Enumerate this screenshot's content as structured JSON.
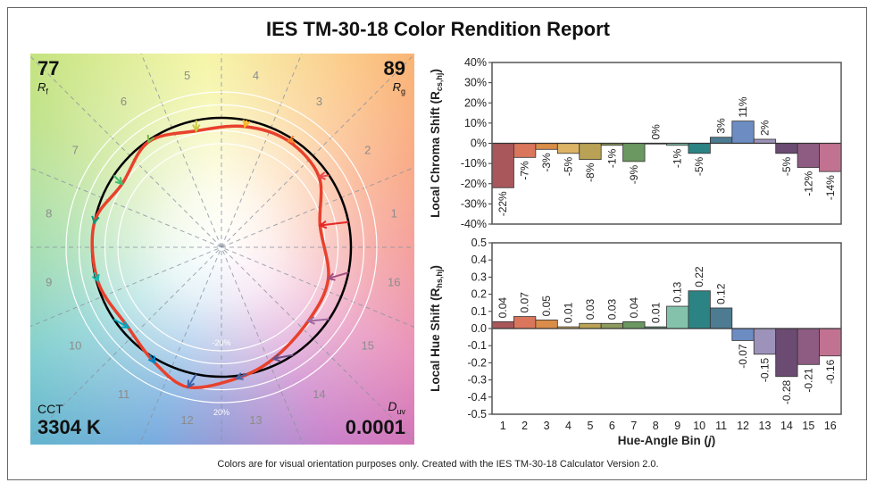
{
  "title": "IES TM-30-18 Color Rendition Report",
  "footnote": "Colors are for visual orientation purposes only. Created with the IES TM-30-18 Calculator Version 2.0.",
  "vector_graphic": {
    "rf_value": "77",
    "rf_label": "R",
    "rf_sub": "f",
    "rg_value": "89",
    "rg_label": "R",
    "rg_sub": "g",
    "cct_label": "CCT",
    "cct_value": "3304 K",
    "duv_label": "D",
    "duv_sub": "uv",
    "duv_value": "0.0001",
    "ring_labels": [
      "-20%",
      "20%"
    ],
    "bin_labels": [
      "1",
      "2",
      "3",
      "4",
      "5",
      "6",
      "7",
      "8",
      "9",
      "10",
      "11",
      "12",
      "13",
      "14",
      "15",
      "16"
    ],
    "reference_color": "#000000",
    "test_color": "#e8412c",
    "arrow_colors": [
      "#e62828",
      "#e74b4b",
      "#fb812e",
      "#ffb529",
      "#cbca46",
      "#7eb94c",
      "#41c06d",
      "#009c7c",
      "#16bcb0",
      "#00a4bf",
      "#0085c3",
      "#3b62aa",
      "#4568ae",
      "#6a4e85",
      "#9d69a1",
      "#a74f81"
    ]
  },
  "chart_data": [
    {
      "type": "bar",
      "ylabel": "Local Chroma Shift (R",
      "ylabel_sub": "cs,hj",
      "ylabel_end": ")",
      "categories": [
        "1",
        "2",
        "3",
        "4",
        "5",
        "6",
        "7",
        "8",
        "9",
        "10",
        "11",
        "12",
        "13",
        "14",
        "15",
        "16"
      ],
      "values": [
        -22,
        -7,
        -3,
        -5,
        -8,
        -1,
        -9,
        0,
        -1,
        -5,
        3,
        11,
        2,
        -5,
        -12,
        -14
      ],
      "data_labels": [
        "-22%",
        "-7%",
        "-3%",
        "-5%",
        "-8%",
        "-1%",
        "-9%",
        "0%",
        "-1%",
        "-5%",
        "3%",
        "11%",
        "2%",
        "-5%",
        "-12%",
        "-14%"
      ],
      "ylim": [
        -40,
        40
      ],
      "yticks": [
        "40%",
        "30%",
        "20%",
        "10%",
        "0%",
        "-10%",
        "-20%",
        "-30%",
        "-40%"
      ],
      "ytick_values": [
        40,
        30,
        20,
        10,
        0,
        -10,
        -20,
        -30,
        -40
      ],
      "grid": false,
      "colors": [
        "#a9575a",
        "#d9765c",
        "#d98d48",
        "#ddb465",
        "#b9a255",
        "#8d9b5e",
        "#6b9760",
        "#5c8e73",
        "#84c2ab",
        "#2c8384",
        "#4d7b91",
        "#6c8cc2",
        "#9d93ba",
        "#6c4b72",
        "#8e5c83",
        "#c27291"
      ]
    },
    {
      "type": "bar",
      "ylabel": "Local Hue Shift (R",
      "ylabel_sub": "hs,hj",
      "ylabel_end": ")",
      "xlabel": "Hue-Angle Bin (",
      "xlabel_var": "j",
      "xlabel_end": ")",
      "categories": [
        "1",
        "2",
        "3",
        "4",
        "5",
        "6",
        "7",
        "8",
        "9",
        "10",
        "11",
        "12",
        "13",
        "14",
        "15",
        "16"
      ],
      "values": [
        0.04,
        0.07,
        0.05,
        0.01,
        0.03,
        0.03,
        0.04,
        0.01,
        0.13,
        0.22,
        0.12,
        -0.07,
        -0.15,
        -0.28,
        -0.21,
        -0.16
      ],
      "data_labels": [
        "0.04",
        "0.07",
        "0.05",
        "0.01",
        "0.03",
        "0.03",
        "0.04",
        "0.01",
        "0.13",
        "0.22",
        "0.12",
        "-0.07",
        "-0.15",
        "-0.28",
        "-0.21",
        "-0.16"
      ],
      "ylim": [
        -0.5,
        0.5
      ],
      "yticks": [
        "0.5",
        "0.4",
        "0.3",
        "0.2",
        "0.1",
        "0.0",
        "-0.1",
        "-0.2",
        "-0.3",
        "-0.4",
        "-0.5"
      ],
      "ytick_values": [
        0.5,
        0.4,
        0.3,
        0.2,
        0.1,
        0,
        -0.1,
        -0.2,
        -0.3,
        -0.4,
        -0.5
      ],
      "grid": false,
      "colors": [
        "#a9575a",
        "#d9765c",
        "#d98d48",
        "#ddb465",
        "#b9a255",
        "#8d9b5e",
        "#6b9760",
        "#5c8e73",
        "#84c2ab",
        "#2c8384",
        "#4d7b91",
        "#6c8cc2",
        "#9d93ba",
        "#6c4b72",
        "#8e5c83",
        "#c27291"
      ]
    }
  ]
}
